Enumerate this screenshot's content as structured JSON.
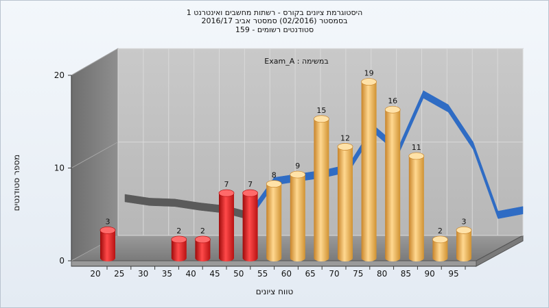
{
  "chart_data": {
    "type": "bar",
    "title_lines": [
      "היסטוגרמת ציונים בקורס - רשתות מחשבים ואינטרנט 1",
      "בסמסטר  (02/2016)  סמסטר אביב 2016/17",
      "סטודנטים רשומים - 159"
    ],
    "annotation": "Exam_A : במשימה",
    "xlabel": "טווח ציונים",
    "ylabel": "מספר סטודנטים",
    "x_ticks": [
      "20",
      "25",
      "30",
      "35",
      "40",
      "45",
      "50",
      "55",
      "60",
      "65",
      "70",
      "75",
      "80",
      "85",
      "90",
      "95"
    ],
    "y_ticks": [
      "0",
      "10",
      "20"
    ],
    "ylim": [
      0,
      20
    ],
    "bins": [
      "20-25",
      "25-30",
      "30-35",
      "35-40",
      "40-45",
      "45-50",
      "50-55",
      "55-60",
      "60-65",
      "65-70",
      "70-75",
      "75-80",
      "80-85",
      "85-90",
      "90-95",
      "95-100"
    ],
    "values": [
      3,
      0,
      0,
      2,
      2,
      7,
      7,
      8,
      9,
      15,
      12,
      19,
      16,
      11,
      2,
      3
    ],
    "data_labels": [
      "3",
      "",
      "",
      "2",
      "2",
      "7",
      "7",
      "8",
      "9",
      "15",
      "12",
      "19",
      "16",
      "11",
      "2",
      "3"
    ],
    "fail_threshold": 55,
    "colors": {
      "fail": "#e01b1b",
      "pass": "#f0b048",
      "trend": "#2f6cc4",
      "trend_low": "#5a5a5a"
    },
    "trend_values": [
      4.4,
      4.0,
      3.9,
      3.5,
      3.2,
      2.5,
      6.2,
      6.6,
      7.0,
      7.6,
      11.8,
      9.5,
      15.5,
      14.0,
      10.0,
      2.6,
      3.1
    ],
    "grid": true
  }
}
